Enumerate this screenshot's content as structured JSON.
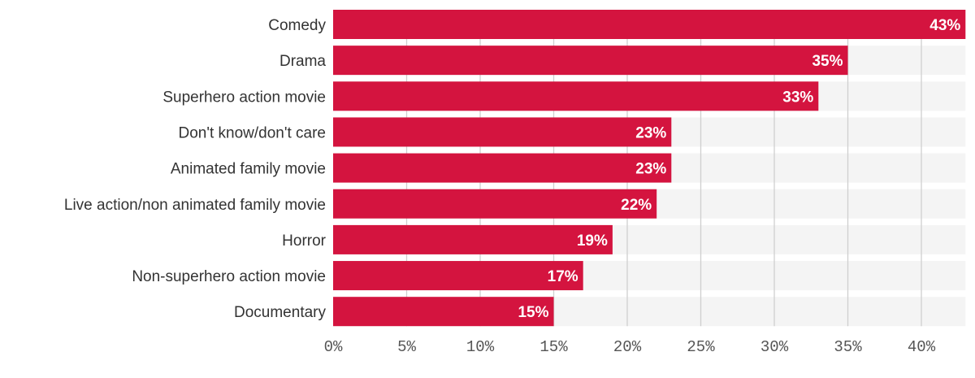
{
  "chart_data": {
    "type": "bar",
    "orientation": "horizontal",
    "title": "",
    "xlabel": "",
    "ylabel": "",
    "categories": [
      "Comedy",
      "Drama",
      "Superhero action movie",
      "Don't know/don't care",
      "Animated family movie",
      "Live action/non animated family movie",
      "Horror",
      "Non-superhero action movie",
      "Documentary"
    ],
    "values": [
      43,
      35,
      33,
      23,
      23,
      22,
      19,
      17,
      15
    ],
    "value_labels": [
      "43%",
      "35%",
      "33%",
      "23%",
      "23%",
      "22%",
      "19%",
      "17%",
      "15%"
    ],
    "xlim": [
      0,
      43
    ],
    "xticks": [
      0,
      5,
      10,
      15,
      20,
      25,
      30,
      35,
      40
    ],
    "xtick_labels": [
      "0%",
      "5%",
      "10%",
      "15%",
      "20%",
      "25%",
      "30%",
      "35%",
      "40%"
    ],
    "grid": true,
    "colors": {
      "bar": "#d4143f",
      "band": "#f4f4f4",
      "grid": "#cfcfcf"
    }
  }
}
